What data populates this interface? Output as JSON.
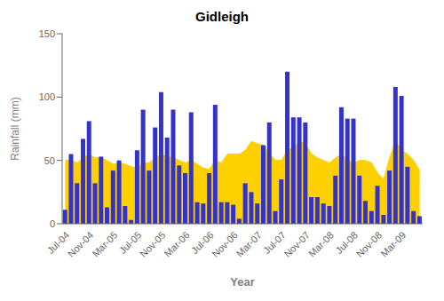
{
  "chart_data": {
    "type": "bar",
    "title": "Gidleigh",
    "xlabel": "Year",
    "ylabel": "Rainfall (mm)",
    "categories": [
      "Jul-04",
      null,
      null,
      null,
      "Nov-04",
      null,
      null,
      null,
      "Mar-05",
      null,
      null,
      null,
      "Jul-05",
      null,
      null,
      null,
      "Nov-05",
      null,
      null,
      null,
      "Mar-06",
      null,
      null,
      null,
      "Jul-06",
      null,
      null,
      null,
      "Nov-06",
      null,
      null,
      null,
      "Mar-07",
      null,
      null,
      null,
      "Jul-07",
      null,
      null,
      null,
      "Nov-07",
      null,
      null,
      null,
      "Mar-08",
      null,
      null,
      null,
      "Jul-08",
      null,
      null,
      null,
      "Nov-08",
      null,
      null,
      null,
      "Mar-09",
      null,
      null,
      null
    ],
    "series": [
      {
        "type": "area",
        "color": "#FFD000",
        "values": [
          50,
          50,
          48,
          52,
          55,
          52,
          52,
          50,
          47,
          48,
          47,
          45,
          44,
          48,
          48,
          52,
          55,
          53,
          52,
          50,
          48,
          50,
          47,
          44,
          43,
          50,
          48,
          55,
          55,
          55,
          58,
          65,
          63,
          62,
          55,
          50,
          50,
          58,
          60,
          65,
          63,
          55,
          52,
          50,
          48,
          52,
          55,
          50,
          48,
          50,
          50,
          48,
          40,
          35,
          52,
          65,
          58,
          55,
          50,
          42
        ]
      },
      {
        "type": "bar",
        "color": "#3333CC",
        "values": [
          11,
          55,
          32,
          67,
          81,
          32,
          53,
          13,
          42,
          50,
          14,
          3,
          58,
          90,
          42,
          76,
          104,
          68,
          90,
          46,
          40,
          88,
          17,
          16,
          40,
          94,
          17,
          17,
          15,
          4,
          32,
          25,
          16,
          62,
          80,
          10,
          35,
          120,
          84,
          84,
          80,
          21,
          21,
          16,
          14,
          38,
          92,
          83,
          83,
          38,
          18,
          10,
          30,
          7,
          42,
          108,
          101,
          45,
          10,
          6
        ]
      }
    ],
    "ylim": [
      0,
      150
    ],
    "yticks": [
      0,
      50,
      100,
      150
    ],
    "grid": false
  }
}
